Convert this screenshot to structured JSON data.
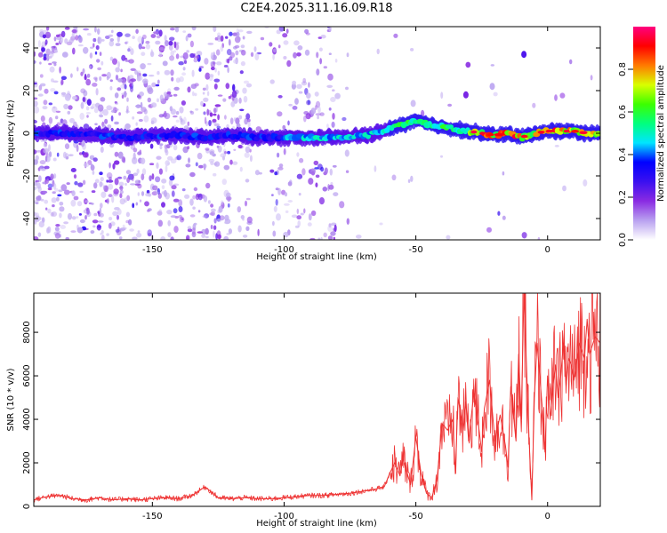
{
  "figure": {
    "title": "C2E4.2025.311.16.09.R18"
  },
  "chart_data": [
    {
      "type": "heatmap",
      "title": "C2E4.2025.311.16.09.R18",
      "xlabel": "Height of straight line (km)",
      "ylabel": "Frequency (Hz)",
      "xlim": [
        -195,
        20
      ],
      "ylim": [
        -50,
        50
      ],
      "xticks": [
        -150,
        -100,
        -50,
        0
      ],
      "yticks": [
        -40,
        -20,
        0,
        20,
        40
      ],
      "grid": false,
      "ridge": {
        "x": [
          -195,
          -180,
          -170,
          -160,
          -150,
          -140,
          -130,
          -120,
          -110,
          -100,
          -90,
          -80,
          -70,
          -65,
          -60,
          -55,
          -50,
          -45,
          -40,
          -35,
          -30,
          -25,
          -20,
          -15,
          -10,
          -5,
          0,
          5,
          10,
          15,
          20
        ],
        "y": [
          0,
          0,
          -1,
          -2,
          -1,
          -1,
          -2,
          -1,
          -2,
          -2,
          -2,
          -2,
          -1,
          0,
          2,
          4,
          6,
          4,
          3,
          2,
          1,
          0,
          -1,
          0,
          -2,
          0,
          1,
          1,
          1,
          0,
          0
        ]
      },
      "isolated_points": [
        {
          "x": -9,
          "y": 37,
          "amp": 0.25
        },
        {
          "x": -31,
          "y": 18,
          "amp": 0.2
        },
        {
          "x": -21,
          "y": 22,
          "amp": 0.08
        },
        {
          "x": -51,
          "y": 14,
          "amp": 0.06
        }
      ],
      "colorbar": {
        "label": "Normalized spectral amplitude",
        "range": [
          0,
          1
        ],
        "ticks": [
          "0.0",
          "0.2",
          "0.4",
          "0.6",
          "0.8"
        ],
        "tick_values": [
          0,
          0.2,
          0.4,
          0.6,
          0.8
        ],
        "colors": [
          "#ffffff",
          "#b9a1f0",
          "#8a2be2",
          "#3b10f0",
          "#0000ff",
          "#00e5ff",
          "#00ff7f",
          "#3cff00",
          "#d9ff00",
          "#ff7a00",
          "#ff0000",
          "#ff007f"
        ]
      }
    },
    {
      "type": "line",
      "xlabel": "Height of straight line (km)",
      "ylabel": "SNR (10 * v/v)",
      "xlim": [
        -195,
        20
      ],
      "ylim": [
        0,
        9800
      ],
      "xticks": [
        -150,
        -100,
        -50,
        0
      ],
      "yticks": [
        0,
        2000,
        4000,
        6000,
        8000
      ],
      "grid": false,
      "series": [
        {
          "color": "#ee3333",
          "x": [
            -195,
            -190,
            -185,
            -180,
            -175,
            -170,
            -165,
            -160,
            -155,
            -150,
            -145,
            -140,
            -135,
            -130,
            -125,
            -120,
            -115,
            -110,
            -105,
            -100,
            -95,
            -90,
            -85,
            -80,
            -75,
            -70,
            -65,
            -62,
            -60,
            -58,
            -56,
            -55,
            -54,
            -52,
            -50,
            -48,
            -46,
            -44,
            -42,
            -40,
            -38,
            -36,
            -35,
            -34,
            -32,
            -31,
            -30,
            -28,
            -26,
            -25,
            -24,
            -22,
            -20,
            -18,
            -16,
            -15,
            -14,
            -12,
            -11,
            -10,
            -9,
            -8,
            -7,
            -6,
            -5,
            -4,
            -3,
            -2,
            -1,
            0,
            1,
            2,
            3,
            4,
            5,
            6,
            7,
            8,
            9,
            10,
            12,
            14,
            15,
            16,
            18,
            20
          ],
          "y": [
            300,
            450,
            500,
            350,
            300,
            400,
            300,
            350,
            300,
            350,
            400,
            350,
            500,
            900,
            400,
            350,
            400,
            350,
            350,
            400,
            450,
            500,
            500,
            550,
            600,
            700,
            800,
            900,
            1500,
            2000,
            1400,
            2200,
            1800,
            1000,
            3200,
            1500,
            600,
            400,
            1200,
            3800,
            3500,
            4000,
            1500,
            5000,
            3500,
            4800,
            3000,
            5200,
            3500,
            2500,
            4500,
            5800,
            3000,
            4200,
            2800,
            1800,
            5500,
            3000,
            7000,
            4000,
            9800,
            6500,
            3000,
            300,
            5000,
            7500,
            6000,
            4500,
            2500,
            6000,
            4000,
            5500,
            6500,
            5000,
            6000,
            7500,
            5500,
            6800,
            6500,
            5800,
            7500,
            6800,
            8600,
            7000,
            7800,
            7500
          ]
        }
      ]
    }
  ]
}
